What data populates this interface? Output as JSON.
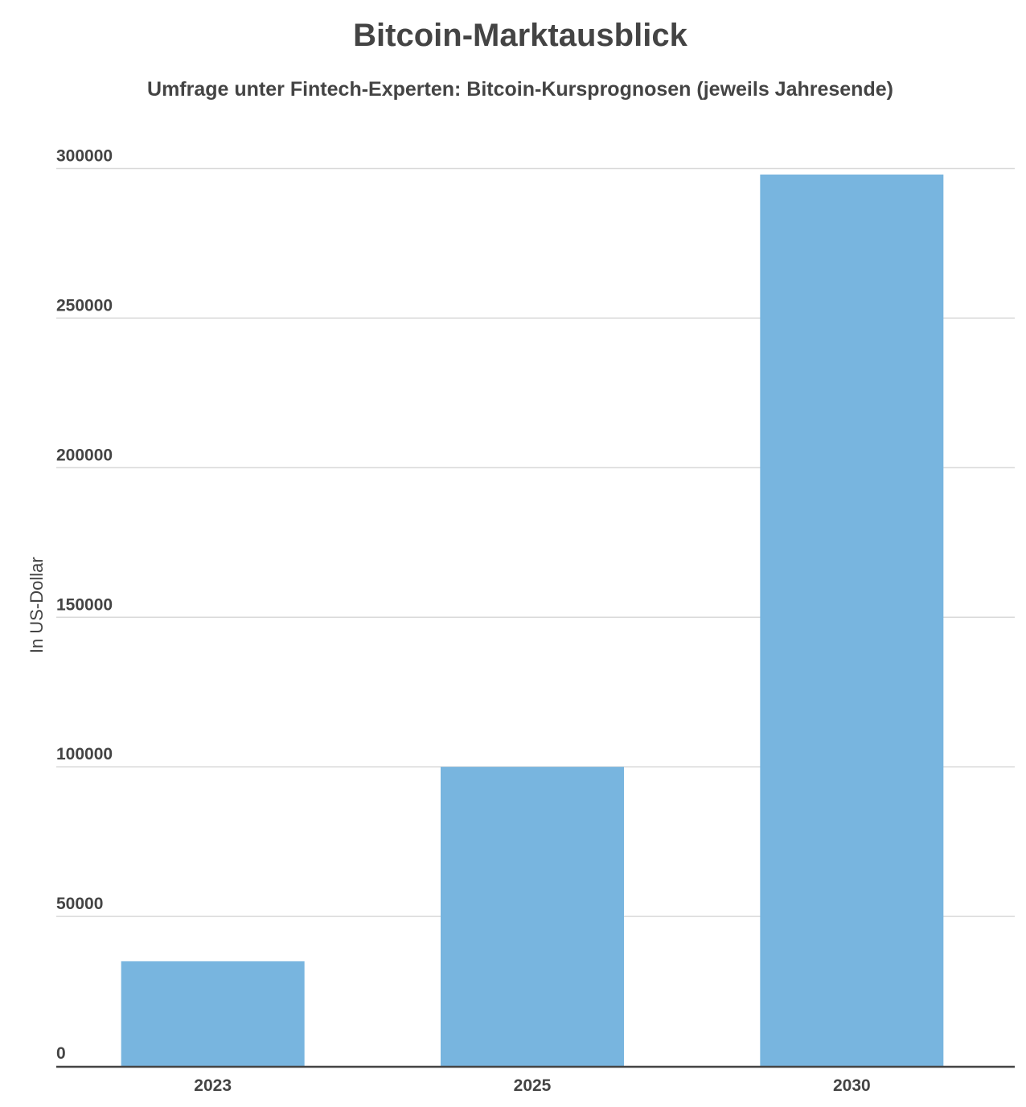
{
  "chart_data": {
    "type": "bar",
    "title": "Bitcoin-Marktausblick",
    "subtitle": "Umfrage unter Fintech-Experten: Bitcoin-Kursprognosen (jeweils Jahresende)",
    "xlabel": "",
    "ylabel": "In US-Dollar",
    "categories": [
      "2023",
      "2025",
      "2030"
    ],
    "values": [
      35000,
      100000,
      298000
    ],
    "ylim": [
      0,
      300000
    ],
    "yticks": [
      "0",
      "50000",
      "100000",
      "150000",
      "200000",
      "250000",
      "300000"
    ],
    "grid": true,
    "legend": "none",
    "colors": {
      "bar": "#78b5df",
      "grid": "#d9d9d9",
      "axis": "#444444",
      "text": "#444444"
    }
  }
}
